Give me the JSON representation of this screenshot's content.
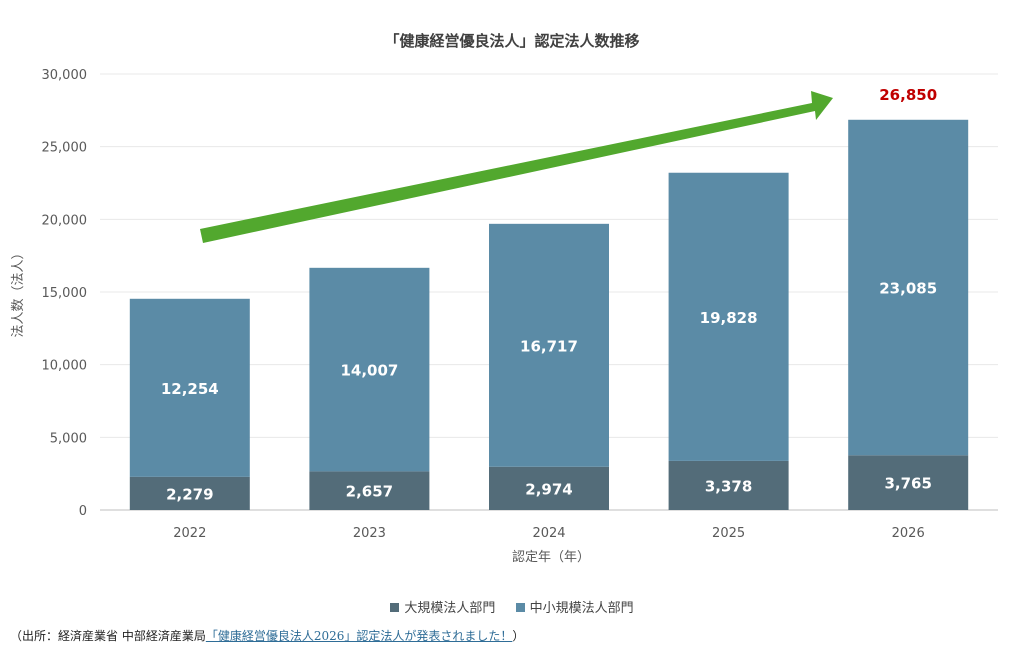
{
  "colors": {
    "small": "#5b8ba6",
    "large": "#536c79",
    "arrow": "#52a82e",
    "total_label": "#c00000",
    "grid": "#e8e8e8",
    "axis_text": "#595959"
  },
  "chart_data": {
    "type": "bar",
    "stacked": true,
    "title": "「健康経営優良法人」認定法人数推移",
    "xlabel": "認定年（年）",
    "ylabel": "法人数（法人）",
    "ylim": [
      0,
      30000
    ],
    "yticks": [
      0,
      5000,
      10000,
      15000,
      20000,
      25000,
      30000
    ],
    "ytick_labels": [
      "0",
      "5,000",
      "10,000",
      "15,000",
      "20,000",
      "25,000",
      "30,000"
    ],
    "grid": true,
    "legend_position": "bottom",
    "categories": [
      "2022",
      "2023",
      "2024",
      "2025",
      "2026"
    ],
    "series": [
      {
        "name": "大規模法人部門",
        "values": [
          2279,
          2657,
          2974,
          3378,
          3765
        ],
        "labels": [
          "2,279",
          "2,657",
          "2,974",
          "3,378",
          "3,765"
        ]
      },
      {
        "name": "中小規模法人部門",
        "values": [
          12254,
          14007,
          16717,
          19828,
          23085
        ],
        "labels": [
          "12,254",
          "14,007",
          "16,717",
          "19,828",
          "23,085"
        ]
      }
    ],
    "annotations": [
      {
        "text": "26,850",
        "category": "2026",
        "value": 26850
      }
    ],
    "trend_arrow": true
  },
  "source": {
    "prefix": "（出所：経済産業省 中部経済産業局",
    "link_text": "「健康経営優良法人2026」認定法人が発表されました！",
    "suffix": "）"
  }
}
